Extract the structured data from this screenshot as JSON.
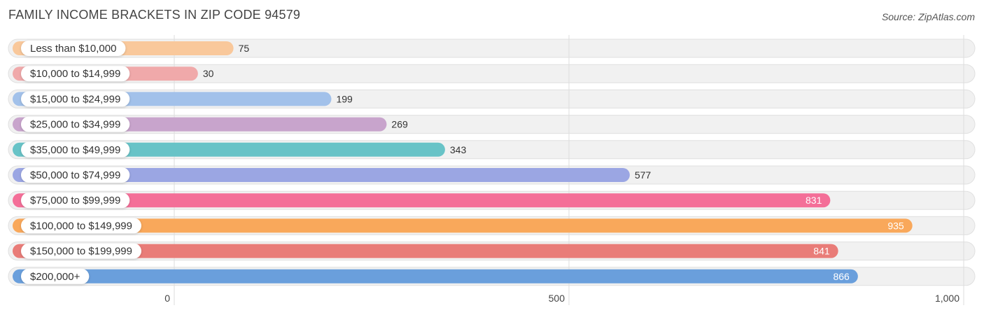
{
  "header": {
    "title": "FAMILY INCOME BRACKETS IN ZIP CODE 94579",
    "source": "Source: ZipAtlas.com"
  },
  "chart_data": {
    "type": "bar",
    "orientation": "horizontal",
    "title": "FAMILY INCOME BRACKETS IN ZIP CODE 94579",
    "categories": [
      "Less than $10,000",
      "$10,000 to $14,999",
      "$15,000 to $24,999",
      "$25,000 to $34,999",
      "$35,000 to $49,999",
      "$50,000 to $74,999",
      "$75,000 to $99,999",
      "$100,000 to $149,999",
      "$150,000 to $199,999",
      "$200,000+"
    ],
    "values": [
      75,
      30,
      199,
      269,
      343,
      577,
      831,
      935,
      841,
      866
    ],
    "colors": [
      "#f9c89b",
      "#f0a9aa",
      "#a2c1ea",
      "#c8a4cc",
      "#68c3c7",
      "#9ba6e3",
      "#f46f98",
      "#f9a85b",
      "#e97c78",
      "#6a9fdc"
    ],
    "xlim": [
      0,
      1000
    ],
    "xticks": [
      {
        "value": 0,
        "label": "0"
      },
      {
        "value": 500,
        "label": "500"
      },
      {
        "value": 1000,
        "label": "1,000"
      }
    ],
    "grid": true,
    "legend": "none"
  }
}
